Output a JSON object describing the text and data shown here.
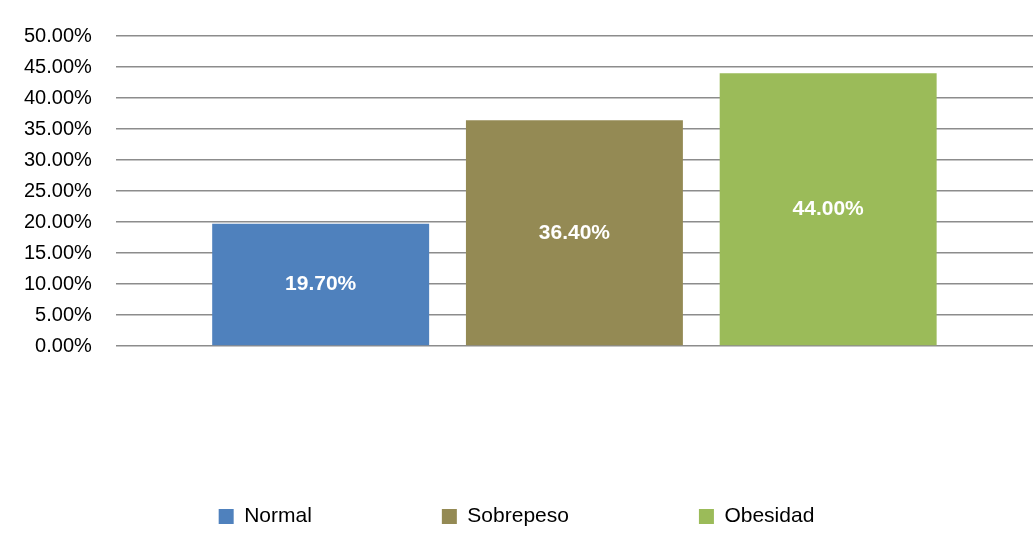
{
  "chart_data": {
    "type": "bar",
    "categories": [
      null
    ],
    "series": [
      {
        "name": "Normal",
        "color": "#4f81bd",
        "values": [
          19.7
        ],
        "value_labels": [
          "19.70%"
        ]
      },
      {
        "name": "Sobrepeso",
        "color": "#948a54",
        "values": [
          36.4
        ],
        "value_labels": [
          "36.40%"
        ]
      },
      {
        "name": "Obesidad",
        "color": "#9bbb59",
        "values": [
          44.0
        ],
        "value_labels": [
          "44.00%"
        ]
      }
    ],
    "ylim": [
      0,
      50
    ],
    "yticks": [
      {
        "value": 0,
        "label": "0.00%"
      },
      {
        "value": 5,
        "label": "5.00%"
      },
      {
        "value": 10,
        "label": "10.00%"
      },
      {
        "value": 15,
        "label": "15.00%"
      },
      {
        "value": 20,
        "label": "20.00%"
      },
      {
        "value": 25,
        "label": "25.00%"
      },
      {
        "value": 30,
        "label": "30.00%"
      },
      {
        "value": 35,
        "label": "35.00%"
      },
      {
        "value": 40,
        "label": "40.00%"
      },
      {
        "value": 45,
        "label": "45.00%"
      },
      {
        "value": 50,
        "label": "50.00%"
      }
    ],
    "grid": "y",
    "legend": "bottom"
  }
}
